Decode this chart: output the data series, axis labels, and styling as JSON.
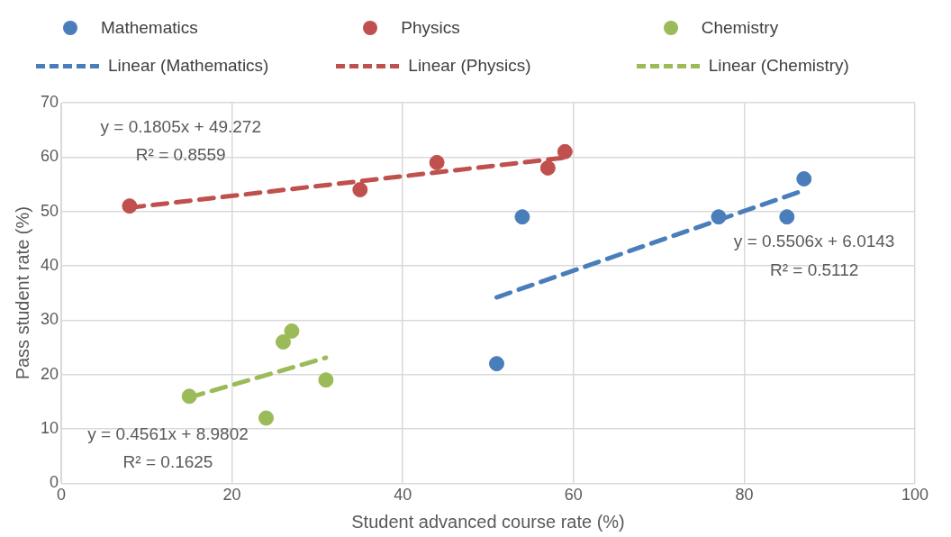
{
  "chart_data": {
    "type": "scatter",
    "xlabel": "Student advanced course rate (%)",
    "ylabel": "Pass student rate (%)",
    "xlim": [
      0,
      100
    ],
    "xticks": [
      0,
      20,
      40,
      60,
      80,
      100
    ],
    "ylim": [
      0,
      70
    ],
    "yticks": [
      0,
      10,
      20,
      30,
      40,
      50,
      60,
      70
    ],
    "grid": true,
    "legend": "top",
    "marker": "circle",
    "series": [
      {
        "name": "Mathematics",
        "color": "#4a7ebb",
        "x": [
          51,
          54,
          77,
          85,
          87
        ],
        "values": [
          22,
          49,
          49,
          49,
          56
        ]
      },
      {
        "name": "Physics",
        "color": "#c0504d",
        "x": [
          8,
          35,
          44,
          57,
          59
        ],
        "values": [
          51,
          54,
          59,
          58,
          61
        ]
      },
      {
        "name": "Chemistry",
        "color": "#9bbb59",
        "x": [
          15,
          24,
          26,
          27,
          31
        ],
        "values": [
          16,
          12,
          26,
          28,
          19
        ]
      },
      {
        "name": "Linear (Mathematics)",
        "color": "#4a7ebb",
        "type": "line",
        "marker": "none",
        "line_style": "dashed",
        "x": [
          51,
          87
        ],
        "values": [
          34.2,
          53.9
        ]
      },
      {
        "name": "Linear (Physics)",
        "color": "#c0504d",
        "type": "line",
        "marker": "none",
        "line_style": "dashed",
        "x": [
          8,
          59
        ],
        "values": [
          50.7,
          59.9
        ]
      },
      {
        "name": "Linear (Chemistry)",
        "color": "#9bbb59",
        "type": "line",
        "marker": "none",
        "line_style": "dashed",
        "x": [
          15,
          31
        ],
        "values": [
          15.8,
          23.1
        ]
      }
    ],
    "annotations": [
      "y = 0.1805x + 49.272",
      "R² = 0.8559",
      "y = 0.5506x + 6.0143",
      "R² = 0.5112",
      "y = 0.4561x + 8.9802",
      "R² = 0.1625"
    ]
  }
}
